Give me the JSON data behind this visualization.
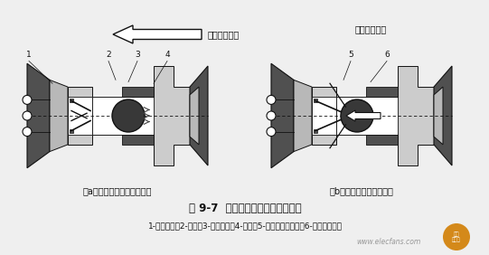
{
  "bg_color": "#efefef",
  "title": "图 9-7  滚球机电开关式碰撞传感器",
  "subtitle": "1-固定触点；2-滚球；3-永久磁铁；4-磁力；5-碰撞时的惯性力；6-惯性力与磁力",
  "label_a": "（a）不发生碰撞，电极断开",
  "label_b": "（b）碰撞发生，电极接通",
  "arrow_label_left": "汽车前进方向",
  "arrow_label_right": "汽车前进方向",
  "watermark": "www.elecfans.com",
  "c_dark": "#505050",
  "c_mid": "#909090",
  "c_light": "#b8b8b8",
  "c_vlight": "#cccccc",
  "c_white": "#ffffff",
  "c_black": "#111111",
  "c_bg": "#efefef"
}
